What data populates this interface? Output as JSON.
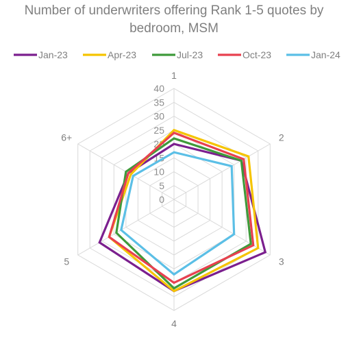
{
  "chart_data": {
    "type": "radar",
    "title_line1": "Number of underwriters offering Rank 1-5 quotes by",
    "title_line2": "bedroom, MSM",
    "categories": [
      "1",
      "2",
      "3",
      "4",
      "5",
      "6+"
    ],
    "r_ticks": [
      "0",
      "5",
      "10",
      "15",
      "20",
      "25",
      "30",
      "35",
      "40"
    ],
    "r_range": [
      0,
      40
    ],
    "grid": true,
    "legend_position": "top",
    "series": [
      {
        "name": "Jan-23",
        "color": "#7b1f8e",
        "values": [
          20,
          28,
          38,
          33,
          31,
          19
        ]
      },
      {
        "name": "Apr-23",
        "color": "#f5c400",
        "values": [
          25,
          31,
          35,
          33,
          27,
          18
        ]
      },
      {
        "name": "Jul-23",
        "color": "#3f9a3a",
        "values": [
          22,
          28,
          32,
          32,
          24,
          20
        ]
      },
      {
        "name": "Oct-23",
        "color": "#e8404f",
        "values": [
          24,
          29,
          33,
          30,
          27,
          19
        ]
      },
      {
        "name": "Jan-24",
        "color": "#5bbfe6",
        "values": [
          17,
          24,
          25,
          27,
          22,
          17
        ]
      }
    ]
  }
}
